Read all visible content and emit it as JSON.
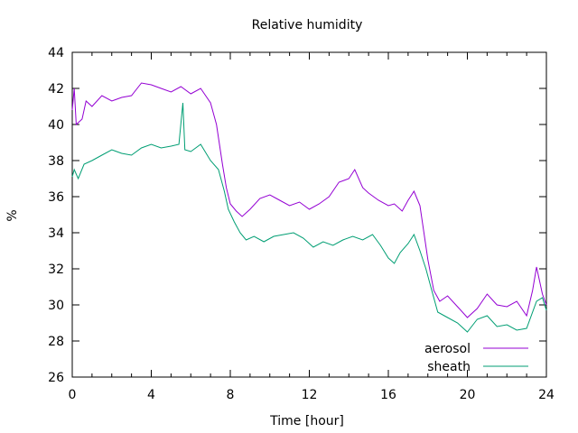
{
  "chart_data": {
    "type": "line",
    "title": "Relative humidity",
    "xlabel": "Time [hour]",
    "ylabel": "%",
    "xlim": [
      0,
      24
    ],
    "ylim": [
      26,
      44
    ],
    "xticks": [
      0,
      4,
      8,
      12,
      16,
      20,
      24
    ],
    "yticks": [
      26,
      28,
      30,
      32,
      34,
      36,
      38,
      40,
      42,
      44
    ],
    "grid": false,
    "legend": "bottom-right",
    "series": [
      {
        "name": "aerosol",
        "color": "#9400d3",
        "points": [
          [
            0,
            40.8
          ],
          [
            0.1,
            42.0
          ],
          [
            0.2,
            40.0
          ],
          [
            0.5,
            40.3
          ],
          [
            0.7,
            41.3
          ],
          [
            1.0,
            41.0
          ],
          [
            1.5,
            41.6
          ],
          [
            2.0,
            41.3
          ],
          [
            2.5,
            41.5
          ],
          [
            3.0,
            41.6
          ],
          [
            3.5,
            42.3
          ],
          [
            4.0,
            42.2
          ],
          [
            4.5,
            42.0
          ],
          [
            5.0,
            41.8
          ],
          [
            5.5,
            42.1
          ],
          [
            6.0,
            41.7
          ],
          [
            6.5,
            42.0
          ],
          [
            7.0,
            41.2
          ],
          [
            7.3,
            40.0
          ],
          [
            7.6,
            37.8
          ],
          [
            7.8,
            36.5
          ],
          [
            8.0,
            35.6
          ],
          [
            8.3,
            35.2
          ],
          [
            8.6,
            34.9
          ],
          [
            9.0,
            35.3
          ],
          [
            9.5,
            35.9
          ],
          [
            10.0,
            36.1
          ],
          [
            10.5,
            35.8
          ],
          [
            11.0,
            35.5
          ],
          [
            11.5,
            35.7
          ],
          [
            12.0,
            35.3
          ],
          [
            12.5,
            35.6
          ],
          [
            13.0,
            36.0
          ],
          [
            13.5,
            36.8
          ],
          [
            14.0,
            37.0
          ],
          [
            14.3,
            37.5
          ],
          [
            14.7,
            36.5
          ],
          [
            15.0,
            36.2
          ],
          [
            15.5,
            35.8
          ],
          [
            16.0,
            35.5
          ],
          [
            16.3,
            35.6
          ],
          [
            16.7,
            35.2
          ],
          [
            17.0,
            35.8
          ],
          [
            17.3,
            36.3
          ],
          [
            17.6,
            35.5
          ],
          [
            18.0,
            32.5
          ],
          [
            18.3,
            30.8
          ],
          [
            18.6,
            30.2
          ],
          [
            19.0,
            30.5
          ],
          [
            19.5,
            29.9
          ],
          [
            20.0,
            29.3
          ],
          [
            20.5,
            29.8
          ],
          [
            21.0,
            30.6
          ],
          [
            21.5,
            30.0
          ],
          [
            22.0,
            29.9
          ],
          [
            22.5,
            30.2
          ],
          [
            23.0,
            29.4
          ],
          [
            23.3,
            30.8
          ],
          [
            23.5,
            32.1
          ],
          [
            23.8,
            30.6
          ],
          [
            24.0,
            30.0
          ]
        ]
      },
      {
        "name": "sheath",
        "color": "#009e73",
        "points": [
          [
            0,
            37.1
          ],
          [
            0.1,
            37.5
          ],
          [
            0.3,
            37.0
          ],
          [
            0.6,
            37.8
          ],
          [
            1.0,
            38.0
          ],
          [
            1.5,
            38.3
          ],
          [
            2.0,
            38.6
          ],
          [
            2.5,
            38.4
          ],
          [
            3.0,
            38.3
          ],
          [
            3.5,
            38.7
          ],
          [
            4.0,
            38.9
          ],
          [
            4.5,
            38.7
          ],
          [
            5.0,
            38.8
          ],
          [
            5.4,
            38.9
          ],
          [
            5.6,
            41.2
          ],
          [
            5.7,
            38.6
          ],
          [
            6.0,
            38.5
          ],
          [
            6.5,
            38.9
          ],
          [
            7.0,
            38.0
          ],
          [
            7.4,
            37.5
          ],
          [
            7.7,
            36.3
          ],
          [
            7.9,
            35.3
          ],
          [
            8.2,
            34.6
          ],
          [
            8.5,
            34.0
          ],
          [
            8.8,
            33.6
          ],
          [
            9.2,
            33.8
          ],
          [
            9.7,
            33.5
          ],
          [
            10.2,
            33.8
          ],
          [
            10.7,
            33.9
          ],
          [
            11.2,
            34.0
          ],
          [
            11.7,
            33.7
          ],
          [
            12.2,
            33.2
          ],
          [
            12.7,
            33.5
          ],
          [
            13.2,
            33.3
          ],
          [
            13.7,
            33.6
          ],
          [
            14.2,
            33.8
          ],
          [
            14.7,
            33.6
          ],
          [
            15.2,
            33.9
          ],
          [
            15.6,
            33.3
          ],
          [
            16.0,
            32.6
          ],
          [
            16.3,
            32.3
          ],
          [
            16.6,
            32.9
          ],
          [
            17.0,
            33.4
          ],
          [
            17.3,
            33.9
          ],
          [
            17.6,
            33.0
          ],
          [
            17.9,
            32.0
          ],
          [
            18.2,
            30.8
          ],
          [
            18.5,
            29.6
          ],
          [
            19.0,
            29.3
          ],
          [
            19.5,
            29.0
          ],
          [
            20.0,
            28.5
          ],
          [
            20.5,
            29.2
          ],
          [
            21.0,
            29.4
          ],
          [
            21.5,
            28.8
          ],
          [
            22.0,
            28.9
          ],
          [
            22.5,
            28.6
          ],
          [
            23.0,
            28.7
          ],
          [
            23.5,
            30.2
          ],
          [
            23.8,
            30.4
          ],
          [
            24.0,
            29.7
          ]
        ]
      }
    ]
  }
}
